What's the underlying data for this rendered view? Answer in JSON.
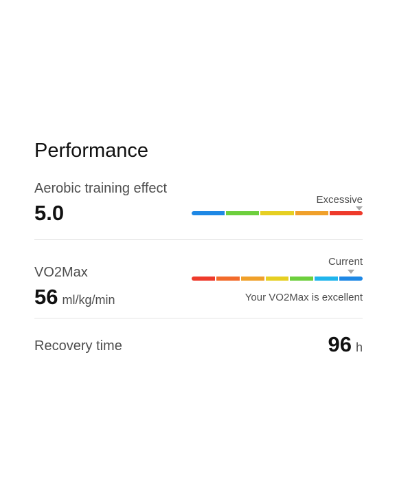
{
  "section_title": "Performance",
  "aerobic": {
    "label": "Aerobic training effect",
    "value": "5.0",
    "marker_label": "Excessive",
    "segments": [
      "#1e88e5",
      "#6dcf3d",
      "#e6cf22",
      "#f0a02a",
      "#ee3a2b"
    ],
    "marker_position": 0.98
  },
  "vo2max": {
    "label": "VO2Max",
    "value": "56",
    "unit": "ml/kg/min",
    "marker_label": "Current",
    "status_text": "Your VO2Max is excellent",
    "segments": [
      "#ee3a2b",
      "#f26b2b",
      "#f0a02a",
      "#e6cf22",
      "#6dcf3d",
      "#20b5ec",
      "#1e88e5"
    ],
    "marker_position": 0.93
  },
  "recovery": {
    "label": "Recovery time",
    "value": "96",
    "unit": "h"
  }
}
